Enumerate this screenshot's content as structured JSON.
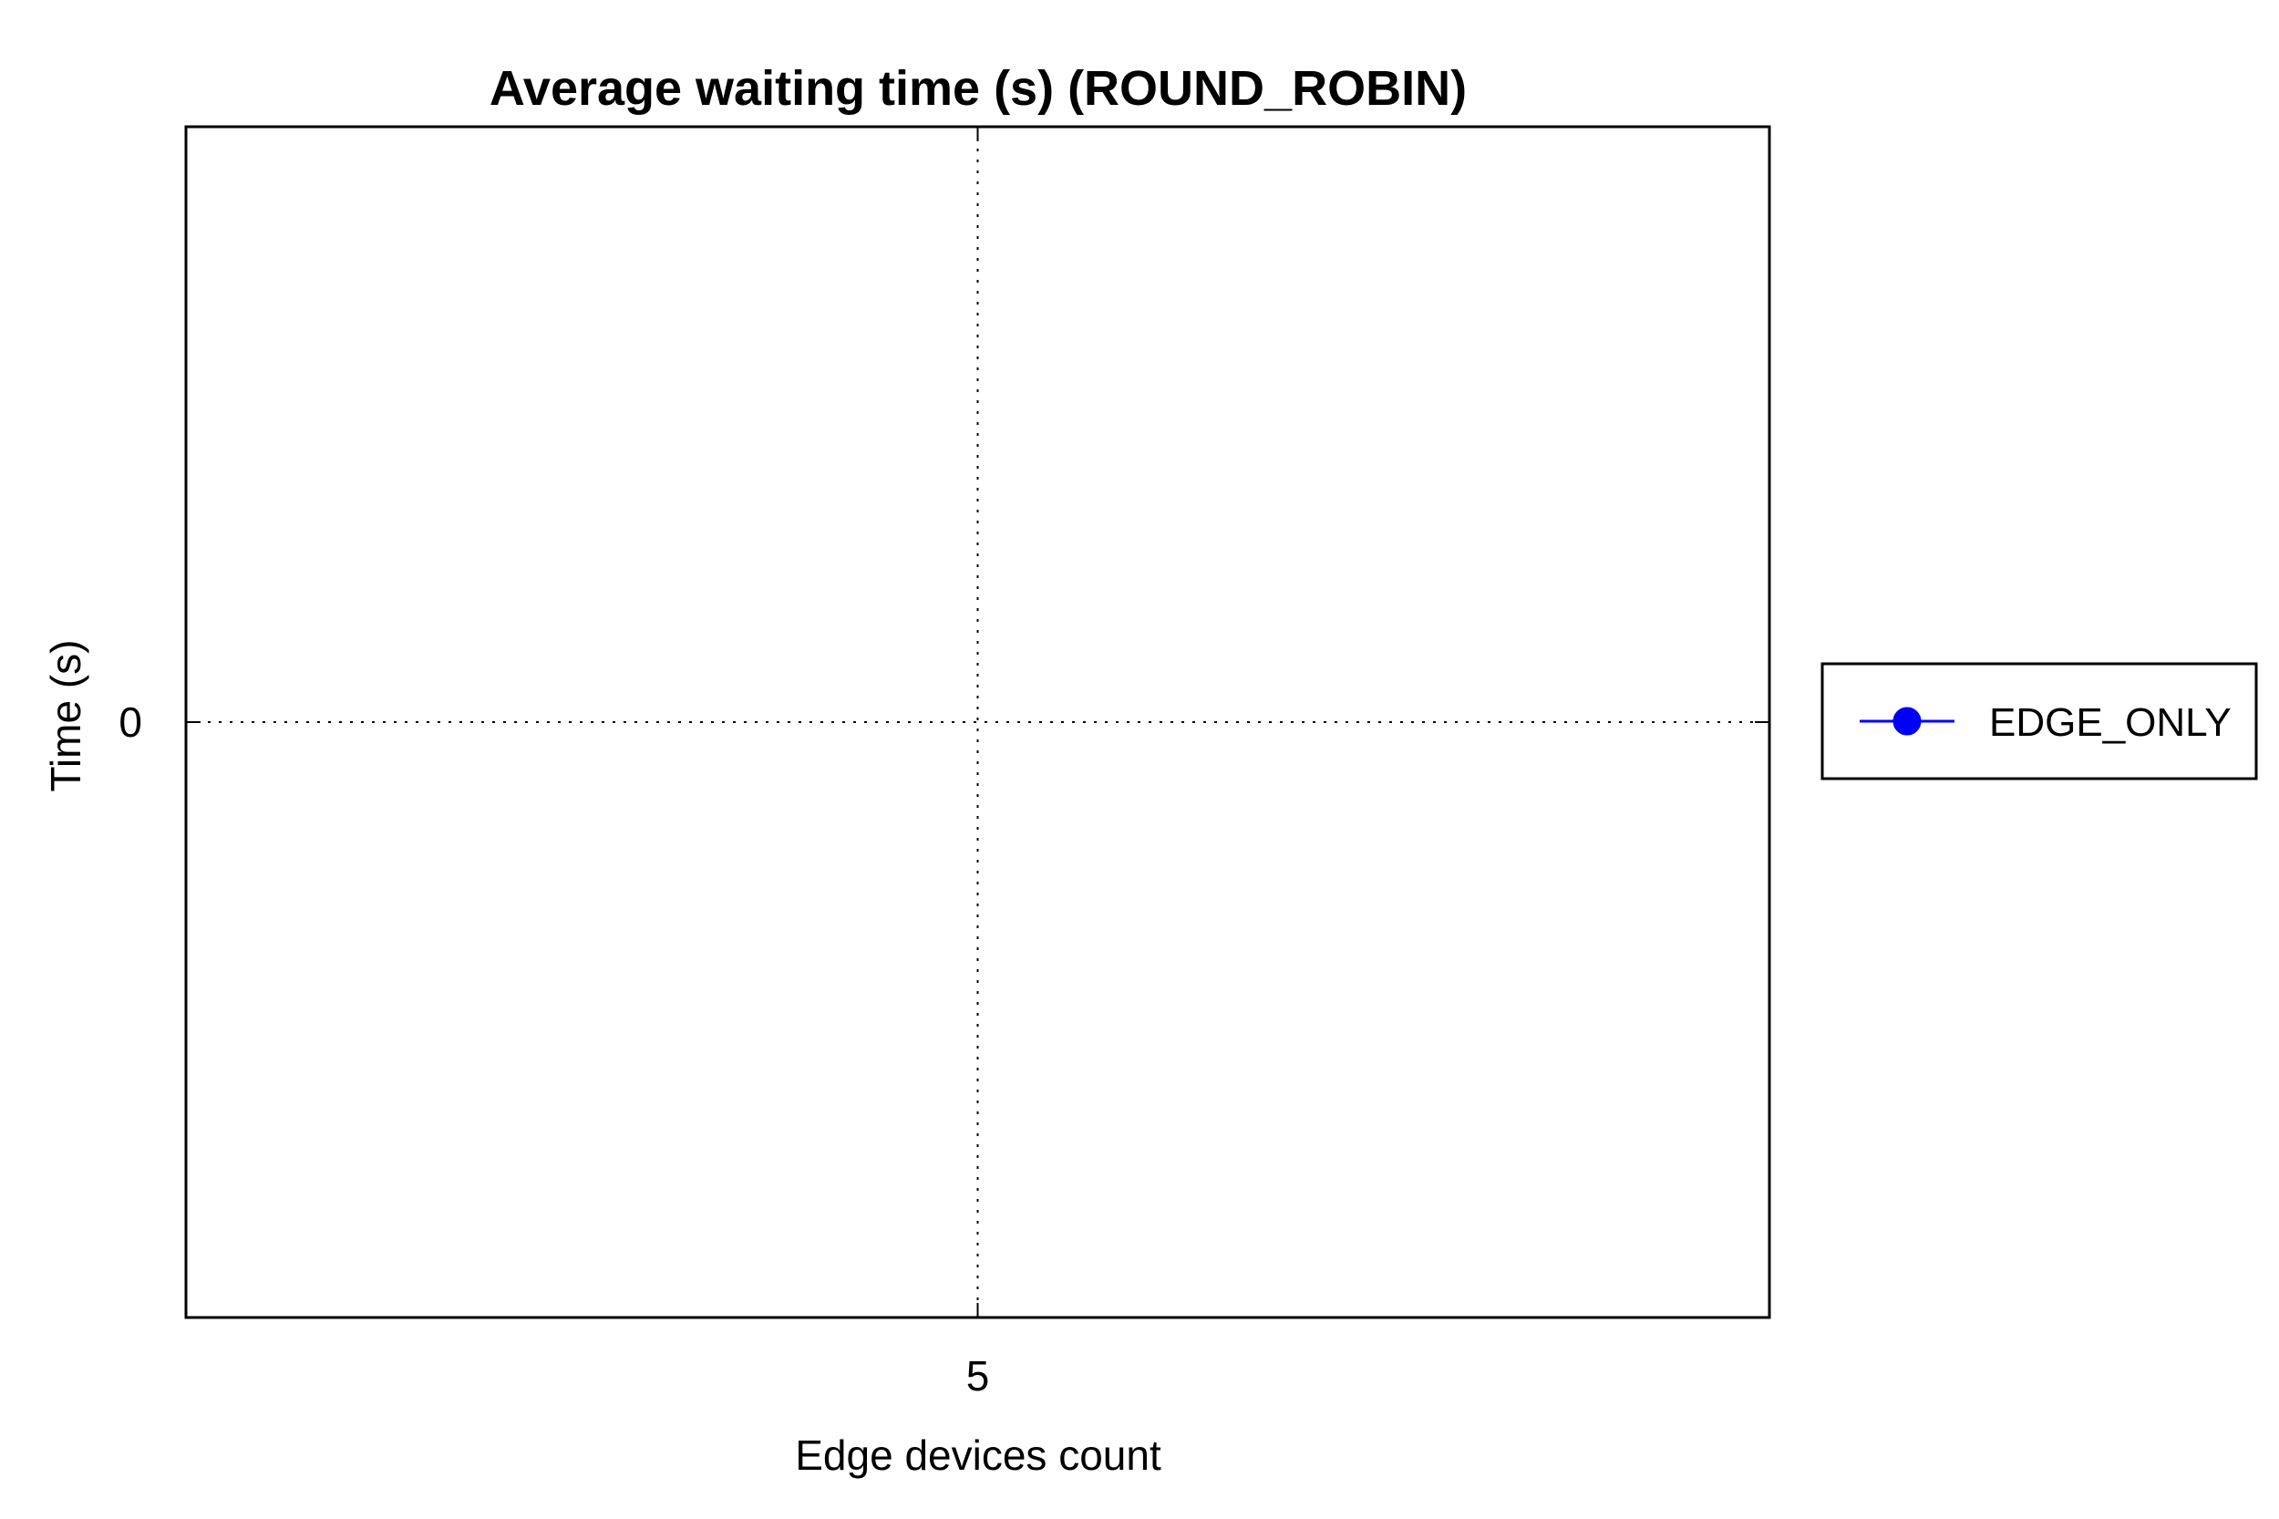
{
  "chart_data": {
    "type": "line",
    "title": "Average waiting time (s) (ROUND_ROBIN)",
    "xlabel": "Edge devices count",
    "ylabel": "Time (s)",
    "x_ticks": [
      "5"
    ],
    "y_ticks": [
      "0"
    ],
    "xlim": [
      4,
      6
    ],
    "ylim": [
      -1,
      1
    ],
    "grid": true,
    "legend_position": "right",
    "series": [
      {
        "name": "EDGE_ONLY",
        "color": "#0000ff",
        "marker": "circle",
        "x": [
          5
        ],
        "values": [
          0
        ]
      }
    ]
  }
}
